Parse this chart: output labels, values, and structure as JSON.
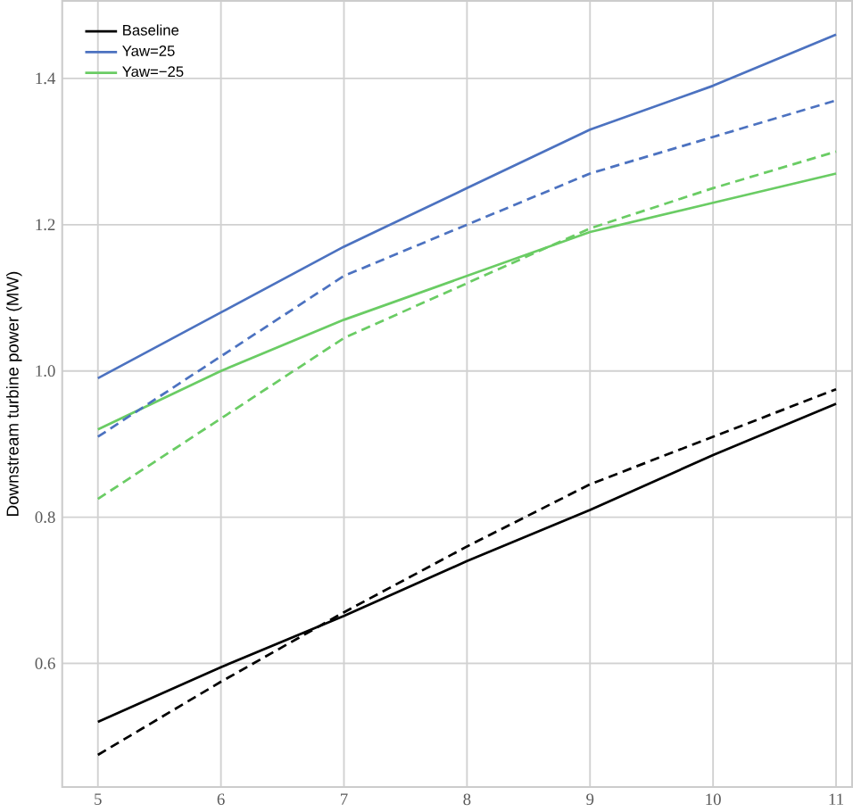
{
  "chart_data": {
    "type": "line",
    "ylabel": "Downstream turbine power (MW)",
    "x": [
      5,
      6,
      7,
      8,
      9,
      10,
      11
    ],
    "series": [
      {
        "name": "Baseline",
        "color": "#000000",
        "line_style": "solid",
        "values": [
          0.52,
          0.595,
          0.665,
          0.74,
          0.81,
          0.885,
          0.955
        ]
      },
      {
        "name": "Yaw=25",
        "color": "#4c72c0",
        "line_style": "solid",
        "values": [
          0.99,
          1.08,
          1.17,
          1.25,
          1.33,
          1.39,
          1.46
        ]
      },
      {
        "name": "Yaw=−25",
        "color": "#6acc64",
        "line_style": "solid",
        "values": [
          0.92,
          1.0,
          1.07,
          1.13,
          1.19,
          1.23,
          1.27
        ]
      },
      {
        "color": "#000000",
        "line_style": "dashed",
        "values": [
          0.475,
          0.575,
          0.67,
          0.76,
          0.845,
          0.91,
          0.975
        ]
      },
      {
        "color": "#4c72c0",
        "line_style": "dashed",
        "values": [
          0.91,
          1.02,
          1.13,
          1.2,
          1.27,
          1.32,
          1.37
        ]
      },
      {
        "color": "#6acc64",
        "line_style": "dashed",
        "values": [
          0.825,
          0.935,
          1.045,
          1.12,
          1.195,
          1.25,
          1.3
        ]
      }
    ],
    "xlim": [
      4.71,
      11.13
    ],
    "ylim": [
      0.431,
      1.506
    ],
    "xticks": [
      5,
      6,
      7,
      8,
      9,
      10,
      11
    ],
    "yticks": [
      0.6,
      0.8,
      {
        "value": 1.0,
        "label": "1.0"
      },
      1.2,
      1.4
    ],
    "grid": true,
    "legend": "top left",
    "marker": "none"
  }
}
